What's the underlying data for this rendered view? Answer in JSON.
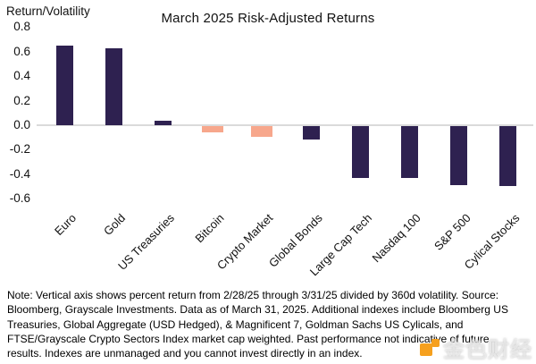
{
  "chart_data": {
    "type": "bar",
    "title": "March 2025 Risk-Adjusted Returns",
    "ylabel": "Return/Volatility",
    "xlabel": "",
    "categories": [
      "Euro",
      "Gold",
      "US Treasuries",
      "Bitcoin",
      "Crypto Market",
      "Global Bonds",
      "Large Cap Tech",
      "Nasdaq 100",
      "S&P 500",
      "Cylical Stocks"
    ],
    "values": [
      0.65,
      0.63,
      0.04,
      -0.05,
      -0.09,
      -0.11,
      -0.42,
      -0.42,
      -0.48,
      -0.49
    ],
    "highlight": [
      false,
      false,
      false,
      true,
      true,
      false,
      false,
      false,
      false,
      false
    ],
    "yticks": [
      "0.8",
      "0.6",
      "0.4",
      "0.2",
      "0.0",
      "-0.2",
      "-0.4",
      "-0.6"
    ],
    "ylim": [
      -0.6,
      0.8
    ],
    "grid": false,
    "legend": null,
    "colors": {
      "default_bar": "#2E2150",
      "highlight_bar": "#F7A78C",
      "axis_line": "#DADADA",
      "text": "#111111"
    }
  },
  "footnote": {
    "lines": [
      "Note: Vertical axis shows percent return from 2/28/25 through 3/31/25 divided by 360d volatility. Source:",
      "Bloomberg, Grayscale Investments. Data as of March 31, 2025. Additional indexes include Bloomberg US",
      "Treasuries, Global Aggregate (USD Hedged), & Magnificent 7, Goldman Sachs US Cylicals, and",
      "FTSE/Grayscale Crypto Sectors Index market cap weighted. Past performance not indicative of future",
      "results. Indexes are unmanaged and you cannot invest directly in an index."
    ]
  },
  "watermark": {
    "text": "金色财经",
    "icon": "jinse-logo-icon",
    "icon_color": "#F6A01E"
  }
}
